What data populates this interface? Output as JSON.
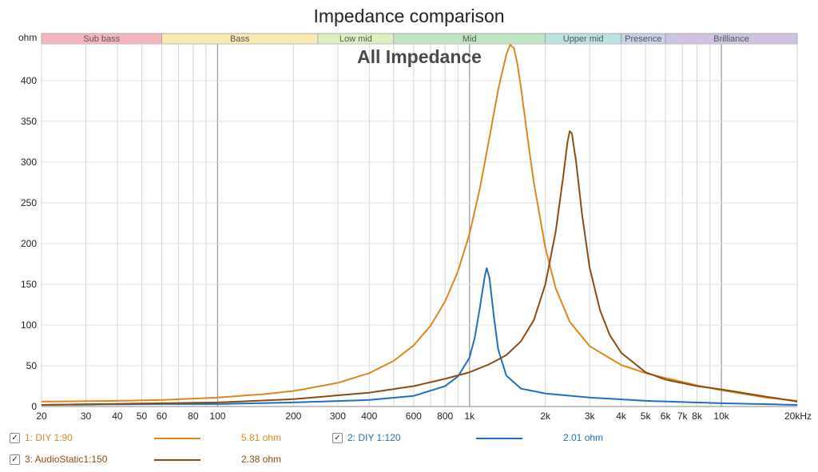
{
  "chart_data": {
    "type": "line",
    "title": "Impedance comparison",
    "subtitle": "All Impedance",
    "ylabel": "ohm",
    "xscale": "log",
    "xlim": [
      20,
      20000
    ],
    "ylim": [
      0,
      445
    ],
    "grid": true,
    "yticks": [
      {
        "v": 0,
        "l": "0"
      },
      {
        "v": 50,
        "l": "50"
      },
      {
        "v": 100,
        "l": "100"
      },
      {
        "v": 150,
        "l": "150"
      },
      {
        "v": 200,
        "l": "200"
      },
      {
        "v": 250,
        "l": "250"
      },
      {
        "v": 300,
        "l": "300"
      },
      {
        "v": 350,
        "l": "350"
      },
      {
        "v": 400,
        "l": "400"
      }
    ],
    "xticks": [
      {
        "v": 20,
        "l": "20"
      },
      {
        "v": 30,
        "l": "30"
      },
      {
        "v": 40,
        "l": "40"
      },
      {
        "v": 50,
        "l": "50"
      },
      {
        "v": 60,
        "l": "60"
      },
      {
        "v": 80,
        "l": "80"
      },
      {
        "v": 100,
        "l": "100"
      },
      {
        "v": 200,
        "l": "200"
      },
      {
        "v": 300,
        "l": "300"
      },
      {
        "v": 400,
        "l": "400"
      },
      {
        "v": 600,
        "l": "600"
      },
      {
        "v": 800,
        "l": "800"
      },
      {
        "v": 1000,
        "l": "1k"
      },
      {
        "v": 2000,
        "l": "2k"
      },
      {
        "v": 3000,
        "l": "3k"
      },
      {
        "v": 4000,
        "l": "4k"
      },
      {
        "v": 5000,
        "l": "5k"
      },
      {
        "v": 6000,
        "l": "6k"
      },
      {
        "v": 7000,
        "l": "7k"
      },
      {
        "v": 8000,
        "l": "8k"
      },
      {
        "v": 10000,
        "l": "10k"
      },
      {
        "v": 20000,
        "l": "20kHz"
      }
    ],
    "bands": [
      {
        "name": "Sub bass",
        "from": 20,
        "to": 60,
        "color": "#f7b6bd"
      },
      {
        "name": "Bass",
        "from": 60,
        "to": 250,
        "color": "#fbeab2"
      },
      {
        "name": "Low mid",
        "from": 250,
        "to": 500,
        "color": "#dff0c0"
      },
      {
        "name": "Mid",
        "from": 500,
        "to": 2000,
        "color": "#bfe6c3"
      },
      {
        "name": "Upper mid",
        "from": 2000,
        "to": 4000,
        "color": "#b9e4e3"
      },
      {
        "name": "Presence",
        "from": 4000,
        "to": 6000,
        "color": "#c6d4ea"
      },
      {
        "name": "Brilliance",
        "from": 6000,
        "to": 20000,
        "color": "#cfc4e4"
      }
    ],
    "series": [
      {
        "name": "1: DIY 1:90",
        "value": "5.81 ohm",
        "color": "#e0861c",
        "x": [
          20,
          40,
          60,
          100,
          150,
          200,
          300,
          400,
          500,
          600,
          700,
          800,
          900,
          1000,
          1100,
          1200,
          1300,
          1400,
          1450,
          1500,
          1550,
          1600,
          1700,
          1800,
          2000,
          2200,
          2500,
          3000,
          4000,
          5000,
          6000,
          8000,
          10000,
          15000,
          20000
        ],
        "y": [
          6,
          7,
          8,
          11,
          15,
          19,
          29,
          41,
          56,
          75,
          99,
          129,
          166,
          212,
          268,
          330,
          389,
          432,
          444,
          440,
          420,
          392,
          330,
          275,
          195,
          145,
          104,
          74,
          51,
          41,
          35,
          26,
          20,
          11,
          7
        ]
      },
      {
        "name": "2: DIY 1:120",
        "value": "2.01 ohm",
        "color": "#1f6fc0",
        "x": [
          20,
          60,
          100,
          200,
          400,
          600,
          800,
          900,
          1000,
          1050,
          1100,
          1150,
          1170,
          1200,
          1250,
          1300,
          1400,
          1600,
          2000,
          3000,
          5000,
          10000,
          20000
        ],
        "y": [
          2,
          3,
          3,
          5,
          8,
          13,
          25,
          37,
          60,
          85,
          122,
          160,
          170,
          158,
          110,
          70,
          38,
          22,
          16,
          11,
          7,
          4,
          2
        ]
      },
      {
        "name": "3: AudioStatic1:150",
        "value": "2.38 ohm",
        "color": "#8b4c12",
        "x": [
          20,
          60,
          100,
          200,
          400,
          600,
          800,
          1000,
          1200,
          1400,
          1600,
          1800,
          2000,
          2200,
          2350,
          2450,
          2500,
          2550,
          2650,
          2800,
          3000,
          3300,
          3600,
          4000,
          5000,
          6000,
          8000,
          10000,
          20000
        ],
        "y": [
          2,
          4,
          5,
          9,
          17,
          25,
          34,
          42,
          52,
          63,
          80,
          106,
          150,
          215,
          280,
          325,
          338,
          335,
          300,
          235,
          170,
          118,
          88,
          66,
          42,
          33,
          25,
          21,
          6
        ]
      }
    ]
  },
  "legend": {
    "checkmark": "✓"
  }
}
